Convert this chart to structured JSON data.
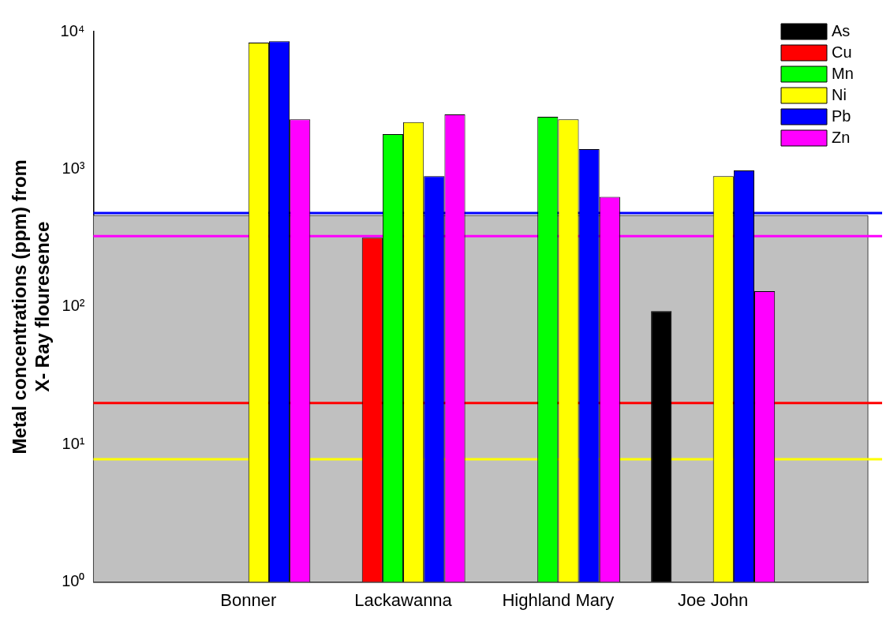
{
  "chart_data": {
    "type": "bar",
    "ylabel": "Metal concentrations (ppm) from X- Ray flouresence",
    "categories": [
      "Bonner",
      "Lackawanna",
      "Highland Mary",
      "Joe John"
    ],
    "series": [
      {
        "name": "As",
        "color": "#000000",
        "values": [
          null,
          null,
          null,
          93
        ]
      },
      {
        "name": "Cu",
        "color": "#ff0000",
        "values": [
          null,
          318,
          null,
          null
        ]
      },
      {
        "name": "Mn",
        "color": "#00ff00",
        "values": [
          null,
          1800,
          2400,
          null
        ]
      },
      {
        "name": "Ni",
        "color": "#ffff00",
        "values": [
          8300,
          2200,
          2300,
          890
        ]
      },
      {
        "name": "Pb",
        "color": "#0000ff",
        "values": [
          8500,
          890,
          1400,
          980
        ]
      },
      {
        "name": "Zn",
        "color": "#ff00ff",
        "values": [
          2300,
          2500,
          630,
          130
        ]
      }
    ],
    "log": "y",
    "ylim": [
      1,
      10000
    ],
    "yticks": [
      {
        "value": 1,
        "label": "10⁰"
      },
      {
        "value": 10,
        "label": "10¹"
      },
      {
        "value": 100,
        "label": "10²"
      },
      {
        "value": 1000,
        "label": "10³"
      },
      {
        "value": 10000,
        "label": "10⁴"
      }
    ],
    "bands": [
      {
        "axis": "y",
        "from": 1,
        "to": 460,
        "color": "#c0c0c0"
      }
    ],
    "ref_lines": [
      {
        "axis": "y",
        "value": 480,
        "color": "#0000ff"
      },
      {
        "axis": "y",
        "value": 326,
        "color": "#ff00ff"
      },
      {
        "axis": "y",
        "value": 20,
        "color": "#ff0000"
      },
      {
        "axis": "y",
        "value": 7.8,
        "color": "#ffff00"
      }
    ],
    "legend": "top right"
  }
}
